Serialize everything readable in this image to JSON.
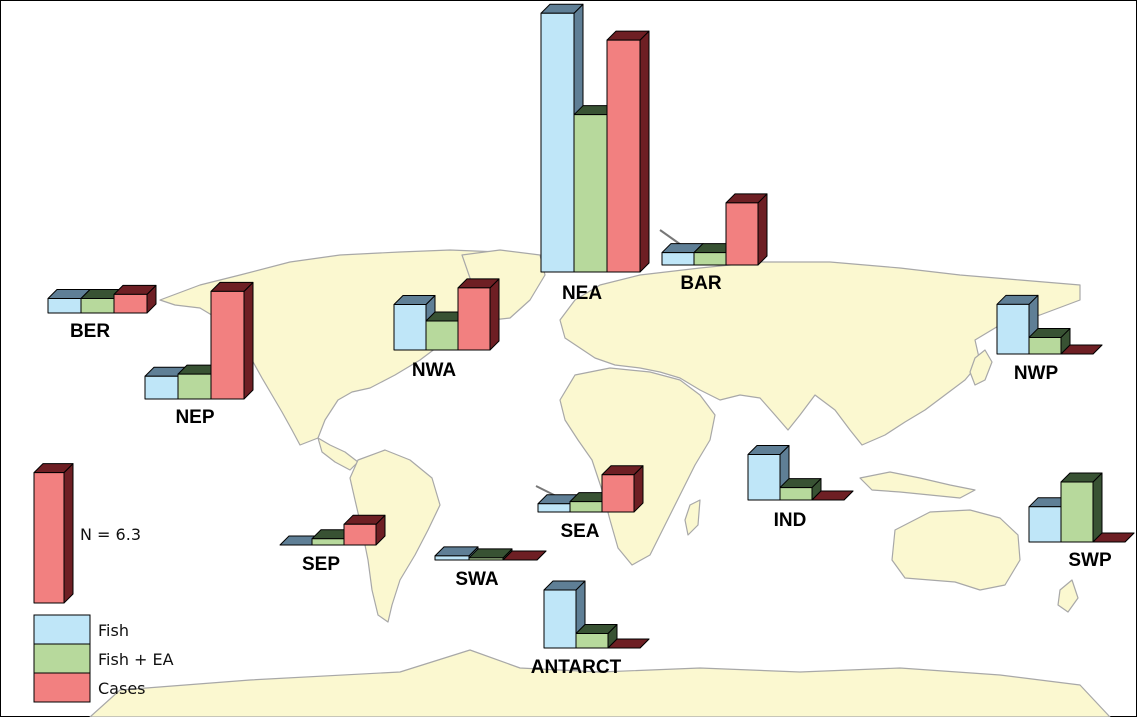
{
  "colors": {
    "land": "#fbf8d0",
    "coast": "#a8a8a8",
    "fish": "#bfe6f8",
    "fish_ea": "#b7d99c",
    "cases": "#f28080",
    "fish_dark": "#5f7f96",
    "fish_ea_dark": "#385233",
    "cases_dark": "#6e1f24"
  },
  "legend": {
    "scale_label": "N = 6.3",
    "scale_value": 6.3,
    "items": [
      {
        "key": "fish",
        "label": "Fish"
      },
      {
        "key": "fish_ea",
        "label": "Fish + EA"
      },
      {
        "key": "cases",
        "label": "Cases"
      }
    ]
  },
  "regions": [
    {
      "id": "NEA",
      "label": "NEA",
      "fish": 12.5,
      "fish_ea": 7.6,
      "cases": 11.2,
      "has_leader": false
    },
    {
      "id": "BAR",
      "label": "BAR",
      "fish": 0.6,
      "fish_ea": 0.6,
      "cases": 3.0,
      "has_leader": true
    },
    {
      "id": "BER",
      "label": "BER",
      "fish": 0.7,
      "fish_ea": 0.7,
      "cases": 0.9,
      "has_leader": false
    },
    {
      "id": "NEP",
      "label": "NEP",
      "fish": 1.1,
      "fish_ea": 1.2,
      "cases": 5.2,
      "has_leader": false
    },
    {
      "id": "NWA",
      "label": "NWA",
      "fish": 2.2,
      "fish_ea": 1.4,
      "cases": 3.0,
      "has_leader": false
    },
    {
      "id": "NWP",
      "label": "NWP",
      "fish": 2.4,
      "fish_ea": 0.8,
      "cases": 0.0,
      "has_leader": false
    },
    {
      "id": "SEA",
      "label": "SEA",
      "fish": 0.4,
      "fish_ea": 0.5,
      "cases": 1.8,
      "has_leader": true
    },
    {
      "id": "IND",
      "label": "IND",
      "fish": 2.2,
      "fish_ea": 0.6,
      "cases": 0.0,
      "has_leader": false
    },
    {
      "id": "SEP",
      "label": "SEP",
      "fish": 0.0,
      "fish_ea": 0.3,
      "cases": 1.0,
      "has_leader": false
    },
    {
      "id": "SWA",
      "label": "SWA",
      "fish": 0.2,
      "fish_ea": 0.1,
      "cases": 0.0,
      "has_leader": false
    },
    {
      "id": "SWP",
      "label": "SWP",
      "fish": 1.7,
      "fish_ea": 2.9,
      "cases": 0.0,
      "has_leader": false
    },
    {
      "id": "ANTARCT",
      "label": "ANTARCT",
      "fish": 2.8,
      "fish_ea": 0.7,
      "cases": 0.0,
      "has_leader": false
    }
  ]
}
